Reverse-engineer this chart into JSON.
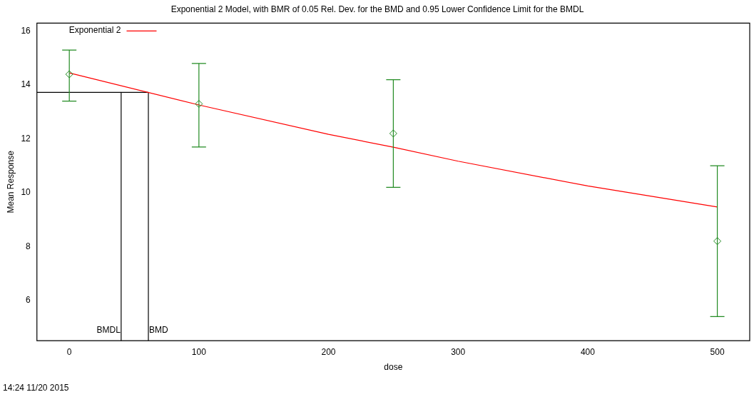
{
  "chart_data": {
    "type": "scatter",
    "title": "Exponential 2 Model, with BMR of 0.05 Rel. Dev. for the BMD and 0.95 Lower Confidence Limit for the BMDL",
    "xlabel": "dose",
    "ylabel": "Mean Response",
    "xlim": [
      -25,
      525
    ],
    "ylim": [
      4.5,
      16.3
    ],
    "xticks": [
      0,
      100,
      200,
      300,
      400,
      500
    ],
    "yticks": [
      6,
      8,
      10,
      12,
      14,
      16
    ],
    "grid": false,
    "legend": "top left",
    "series": [
      {
        "color": "#228b22",
        "marker": "diamond",
        "x": [
          0,
          100,
          250,
          500
        ],
        "values": [
          14.4,
          13.3,
          12.2,
          8.2
        ],
        "errors": [
          [
            13.4,
            15.3
          ],
          [
            11.7,
            14.8
          ],
          [
            10.2,
            14.2
          ],
          [
            5.4,
            11.0
          ]
        ]
      },
      {
        "type": "line",
        "name": "Exponential 2",
        "color": "#ff0000",
        "marker": "none",
        "x": [
          0,
          100,
          200,
          250,
          300,
          400,
          500
        ],
        "values": [
          14.45,
          13.26,
          12.17,
          11.69,
          11.17,
          10.25,
          9.47
        ]
      },
      {
        "type": "line",
        "color": "#000000",
        "marker": "none",
        "x": [
          -25,
          61,
          61
        ],
        "values": [
          13.73,
          13.73,
          4.5
        ]
      },
      {
        "type": "line",
        "color": "#000000",
        "marker": "none",
        "x": [
          40,
          40
        ],
        "values": [
          13.73,
          4.5
        ]
      }
    ],
    "annotations": [
      {
        "text": "BMDL",
        "x": 40,
        "y": 4.8
      },
      {
        "text": "BMD",
        "x": 61,
        "y": 4.8
      },
      "14:24 11/20 2015"
    ]
  }
}
